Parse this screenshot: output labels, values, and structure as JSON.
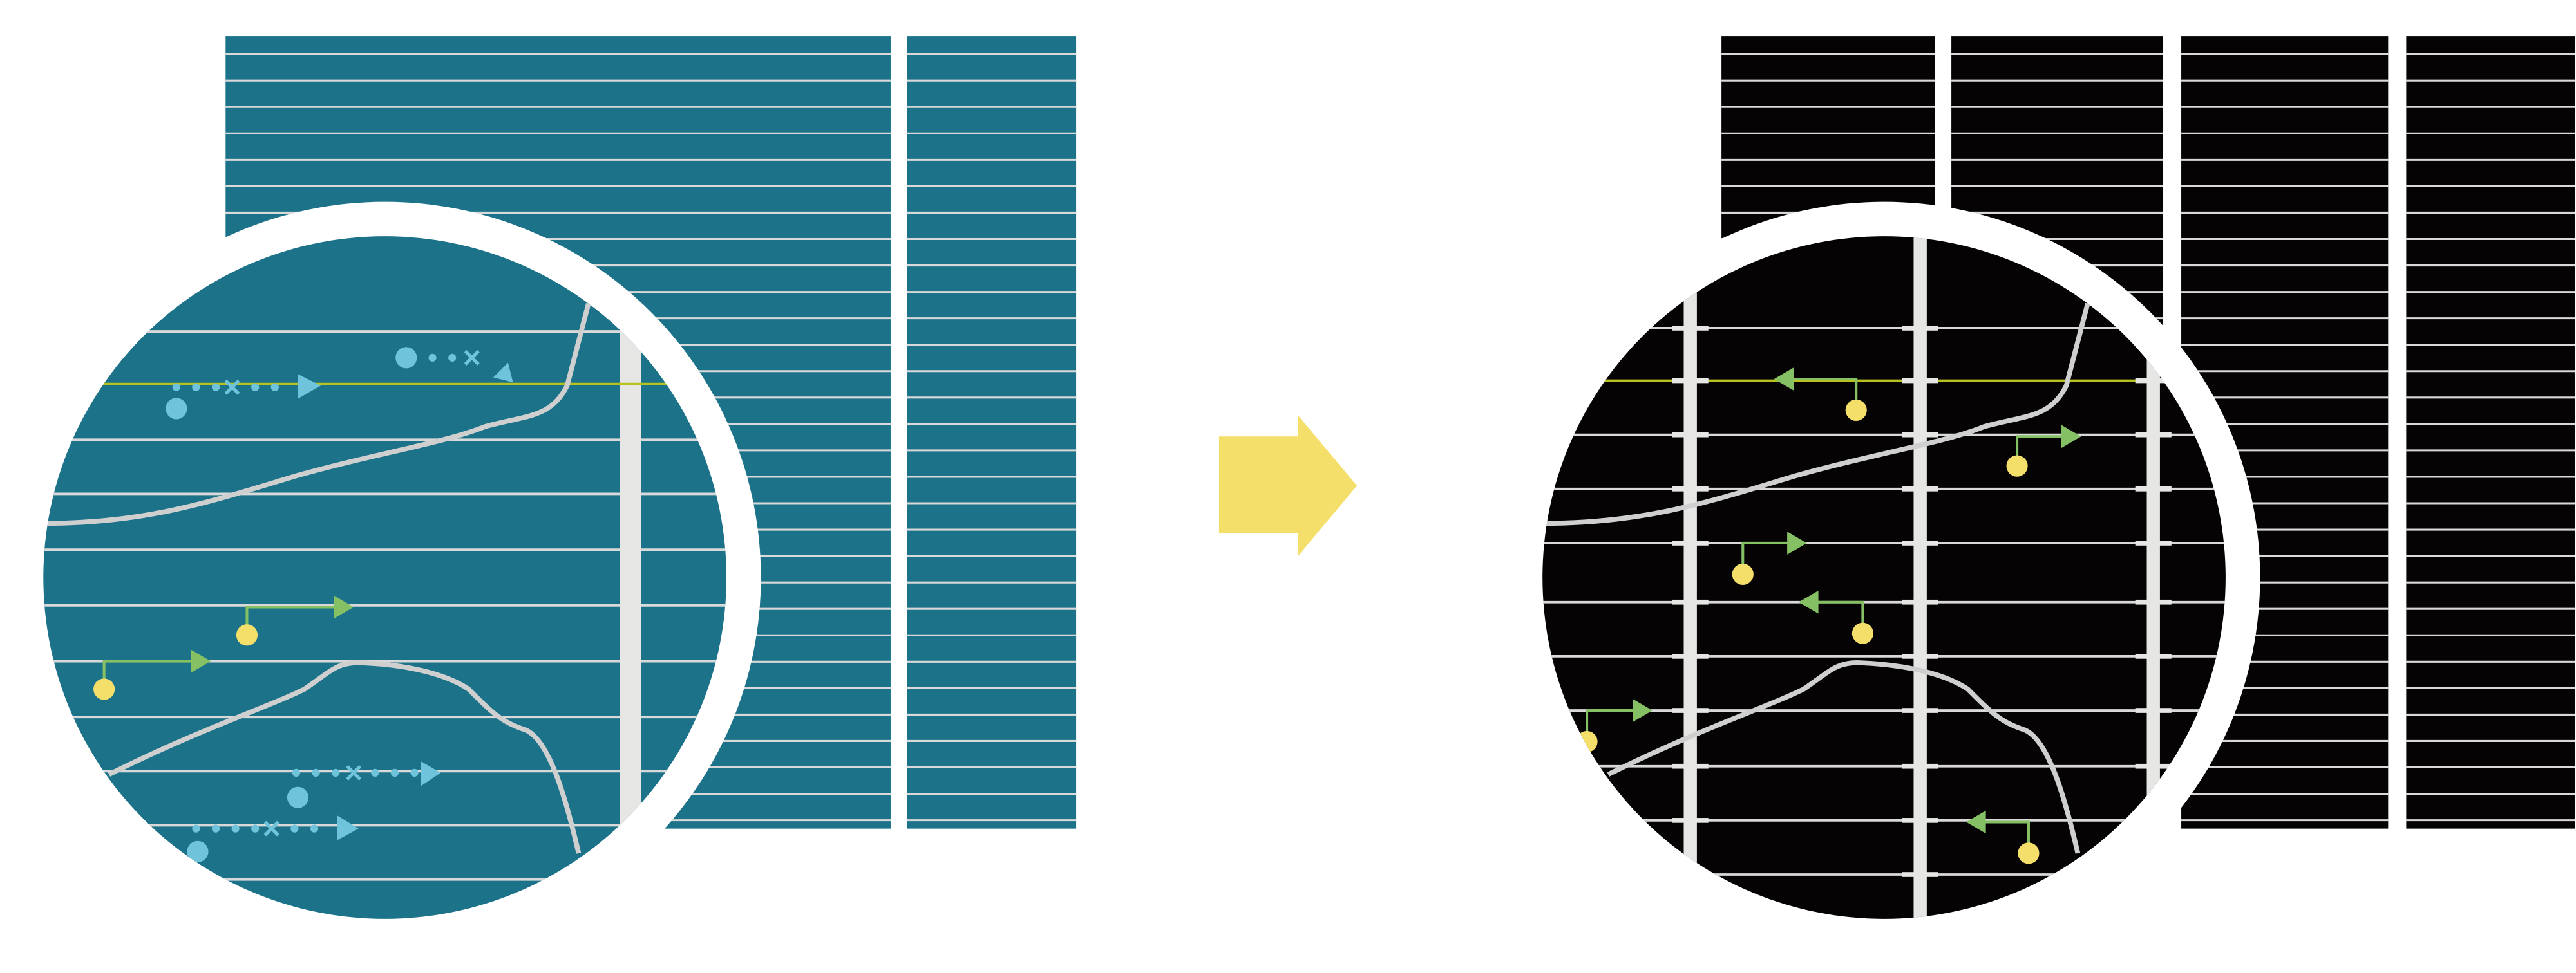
{
  "colors": {
    "background": "#ffffff",
    "before_panel": "#1b7289",
    "after_panel": "#050303",
    "grid_line": "#d9d9d9",
    "highlight_line": "#b8c21e",
    "curve": "#cfcfcf",
    "blue_marker": "#6fc4dc",
    "green_arrow": "#86c065",
    "yellow_dot": "#f4df6a",
    "transform_arrow": "#f4df6a",
    "vertical_bar": "#e6e6e4"
  },
  "icons": {
    "transform": "right-arrow-icon",
    "before_magnifier": "magnifier-circle-icon",
    "after_magnifier": "magnifier-circle-icon"
  }
}
